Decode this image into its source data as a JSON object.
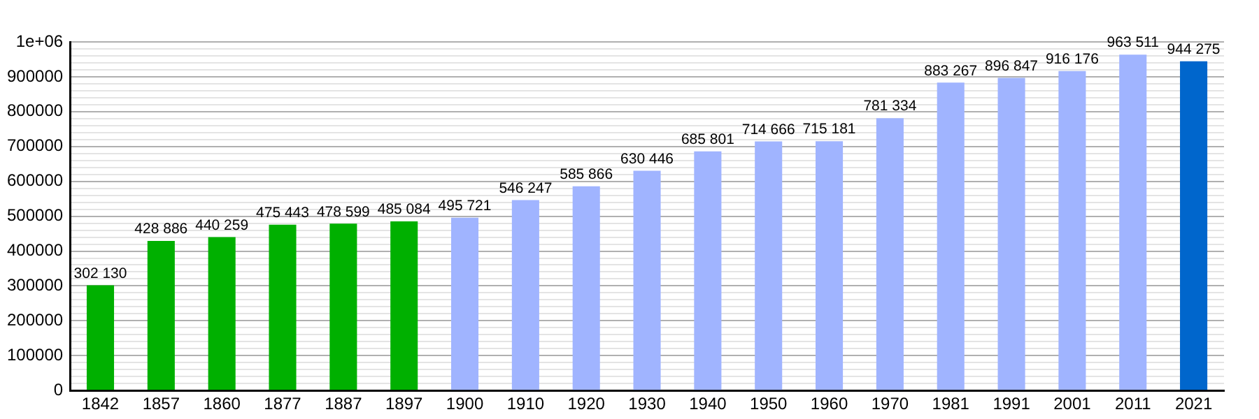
{
  "chart_data": {
    "type": "bar",
    "categories": [
      "1842",
      "1857",
      "1860",
      "1877",
      "1887",
      "1897",
      "1900",
      "1910",
      "1920",
      "1930",
      "1940",
      "1950",
      "1960",
      "1970",
      "1981",
      "1991",
      "2001",
      "2011",
      "2021"
    ],
    "values": [
      302130,
      428886,
      440259,
      475443,
      478599,
      485084,
      495721,
      546247,
      585866,
      630446,
      685801,
      714666,
      715181,
      781334,
      883267,
      896847,
      916176,
      963511,
      944275
    ],
    "colors": [
      "#00b000",
      "#00b000",
      "#00b000",
      "#00b000",
      "#00b000",
      "#00b000",
      "#a0b4ff",
      "#a0b4ff",
      "#a0b4ff",
      "#a0b4ff",
      "#a0b4ff",
      "#a0b4ff",
      "#a0b4ff",
      "#a0b4ff",
      "#a0b4ff",
      "#a0b4ff",
      "#a0b4ff",
      "#a0b4ff",
      "#0066cc"
    ],
    "value_labels": [
      "302 130",
      "428 886",
      "440 259",
      "475 443",
      "478 599",
      "485 084",
      "495 721",
      "546 247",
      "585 866",
      "630 446",
      "685 801",
      "714 666",
      "715 181",
      "781 334",
      "883 267",
      "896 847",
      "916 176",
      "963 511",
      "944 275"
    ],
    "ylim": [
      0,
      1000000
    ],
    "yticks": [
      0,
      {
        "value": 20000,
        "label": null
      },
      {
        "value": 40000,
        "label": null
      },
      {
        "value": 60000,
        "label": null
      },
      {
        "value": 80000,
        "label": null
      },
      100000,
      {
        "value": 120000,
        "label": null
      },
      {
        "value": 140000,
        "label": null
      },
      {
        "value": 160000,
        "label": null
      },
      {
        "value": 180000,
        "label": null
      },
      200000,
      {
        "value": 220000,
        "label": null
      },
      {
        "value": 240000,
        "label": null
      },
      {
        "value": 260000,
        "label": null
      },
      {
        "value": 280000,
        "label": null
      },
      300000,
      {
        "value": 320000,
        "label": null
      },
      {
        "value": 340000,
        "label": null
      },
      {
        "value": 360000,
        "label": null
      },
      {
        "value": 380000,
        "label": null
      },
      400000,
      {
        "value": 420000,
        "label": null
      },
      {
        "value": 440000,
        "label": null
      },
      {
        "value": 460000,
        "label": null
      },
      {
        "value": 480000,
        "label": null
      },
      500000,
      {
        "value": 520000,
        "label": null
      },
      {
        "value": 540000,
        "label": null
      },
      {
        "value": 560000,
        "label": null
      },
      {
        "value": 580000,
        "label": null
      },
      600000,
      {
        "value": 620000,
        "label": null
      },
      {
        "value": 640000,
        "label": null
      },
      {
        "value": 660000,
        "label": null
      },
      {
        "value": 680000,
        "label": null
      },
      700000,
      {
        "value": 720000,
        "label": null
      },
      {
        "value": 740000,
        "label": null
      },
      {
        "value": 760000,
        "label": null
      },
      {
        "value": 780000,
        "label": null
      },
      800000,
      {
        "value": 820000,
        "label": null
      },
      {
        "value": 840000,
        "label": null
      },
      {
        "value": 860000,
        "label": null
      },
      {
        "value": 880000,
        "label": null
      },
      900000,
      {
        "value": 920000,
        "label": null
      },
      {
        "value": 940000,
        "label": null
      },
      {
        "value": 960000,
        "label": null
      },
      {
        "value": 980000,
        "label": null
      },
      {
        "value": 1000000,
        "label": "1e+06"
      }
    ],
    "grid": "y",
    "legend": false
  }
}
